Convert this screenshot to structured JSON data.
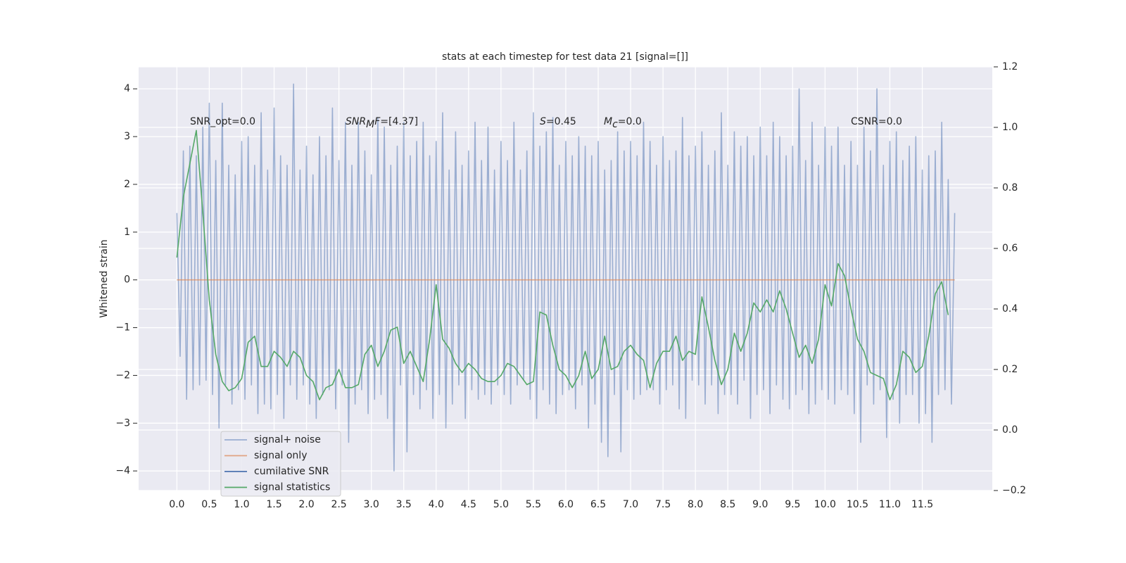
{
  "chart_data": {
    "type": "line",
    "title": "stats at each timestep for test data 21 [signal=[]]",
    "ylabel": "Whitened strain",
    "xlim": [
      -0.59,
      12.58
    ],
    "ylim": [
      -4.41,
      4.46
    ],
    "y2lim": [
      -0.2,
      1.2
    ],
    "xticks": [
      {
        "value": 0,
        "label": "0.0"
      },
      0.5,
      {
        "value": 1,
        "label": "1.0"
      },
      1.5,
      {
        "value": 2,
        "label": "2.0"
      },
      2.5,
      {
        "value": 3,
        "label": "3.0"
      },
      3.5,
      {
        "value": 4,
        "label": "4.0"
      },
      4.5,
      {
        "value": 5,
        "label": "5.0"
      },
      5.5,
      {
        "value": 6,
        "label": "6.0"
      },
      6.5,
      {
        "value": 7,
        "label": "7.0"
      },
      7.5,
      {
        "value": 8,
        "label": "8.0"
      },
      8.5,
      {
        "value": 9,
        "label": "9.0"
      },
      9.5,
      {
        "value": 10,
        "label": "10.0"
      },
      10.5,
      {
        "value": 11,
        "label": "11.0"
      },
      11.5
    ],
    "yticks": [
      {
        "value": -4,
        "label": "−4"
      },
      {
        "value": -3,
        "label": "−3"
      },
      {
        "value": -2,
        "label": "−2"
      },
      {
        "value": -1,
        "label": "−1"
      },
      0,
      1,
      2,
      3,
      4
    ],
    "y2ticks": [
      {
        "value": -0.2,
        "label": "−0.2"
      },
      {
        "value": 0,
        "label": "0.0"
      },
      0.2,
      0.4,
      0.6,
      0.8,
      {
        "value": 1,
        "label": "1.0"
      },
      1.2
    ],
    "grid": true,
    "background": "#eaeaf2",
    "legend": "lower left",
    "annotations": [
      {
        "parts": [
          {
            "text": "SNR_opt=0.0"
          }
        ]
      },
      {
        "parts": [
          {
            "text": "SNR",
            "style": "italic"
          },
          {
            "text": "M",
            "style": "italic-sub"
          },
          {
            "text": "F",
            "style": "italic"
          },
          {
            "text": "=[4.37]"
          }
        ]
      },
      {
        "parts": [
          {
            "text": "S",
            "style": "italic"
          },
          {
            "text": "=0.45"
          }
        ]
      },
      {
        "parts": [
          {
            "text": "M",
            "style": "italic"
          },
          {
            "text": "c",
            "style": "italic-sub"
          },
          {
            "text": "=0.0"
          }
        ]
      },
      {
        "parts": [
          {
            "text": "CSNR=0.0"
          }
        ]
      }
    ],
    "series": [
      {
        "name": "signal+ noise",
        "color": "#4c72b0",
        "opacity": 0.5,
        "x": [
          0,
          0.05,
          0.1,
          0.15,
          0.2,
          0.25,
          0.3,
          0.35,
          0.4,
          0.45,
          0.5,
          0.55,
          0.6,
          0.65,
          0.7,
          0.75,
          0.8,
          0.85,
          0.9,
          0.95,
          1,
          1.05,
          1.1,
          1.15,
          1.2,
          1.25,
          1.3,
          1.35,
          1.4,
          1.45,
          1.5,
          1.55,
          1.6,
          1.65,
          1.7,
          1.75,
          1.8,
          1.85,
          1.9,
          1.95,
          2,
          2.05,
          2.1,
          2.15,
          2.2,
          2.25,
          2.3,
          2.35,
          2.4,
          2.45,
          2.5,
          2.55,
          2.6,
          2.65,
          2.7,
          2.75,
          2.8,
          2.85,
          2.9,
          2.95,
          3,
          3.05,
          3.1,
          3.15,
          3.2,
          3.25,
          3.3,
          3.35,
          3.4,
          3.45,
          3.5,
          3.55,
          3.6,
          3.65,
          3.7,
          3.75,
          3.8,
          3.85,
          3.9,
          3.95,
          4,
          4.05,
          4.1,
          4.15,
          4.2,
          4.25,
          4.3,
          4.35,
          4.4,
          4.45,
          4.5,
          4.55,
          4.6,
          4.65,
          4.7,
          4.75,
          4.8,
          4.85,
          4.9,
          4.95,
          5,
          5.05,
          5.1,
          5.15,
          5.2,
          5.25,
          5.3,
          5.35,
          5.4,
          5.45,
          5.5,
          5.55,
          5.6,
          5.65,
          5.7,
          5.75,
          5.8,
          5.85,
          5.9,
          5.95,
          6,
          6.05,
          6.1,
          6.15,
          6.2,
          6.25,
          6.3,
          6.35,
          6.4,
          6.45,
          6.5,
          6.55,
          6.6,
          6.65,
          6.7,
          6.75,
          6.8,
          6.85,
          6.9,
          6.95,
          7,
          7.05,
          7.1,
          7.15,
          7.2,
          7.25,
          7.3,
          7.35,
          7.4,
          7.45,
          7.5,
          7.55,
          7.6,
          7.65,
          7.7,
          7.75,
          7.8,
          7.85,
          7.9,
          7.95,
          8,
          8.05,
          8.1,
          8.15,
          8.2,
          8.25,
          8.3,
          8.35,
          8.4,
          8.45,
          8.5,
          8.55,
          8.6,
          8.65,
          8.7,
          8.75,
          8.8,
          8.85,
          8.9,
          8.95,
          9,
          9.05,
          9.1,
          9.15,
          9.2,
          9.25,
          9.3,
          9.35,
          9.4,
          9.45,
          9.5,
          9.55,
          9.6,
          9.65,
          9.7,
          9.75,
          9.8,
          9.85,
          9.9,
          9.95,
          10,
          10.05,
          10.1,
          10.15,
          10.2,
          10.25,
          10.3,
          10.35,
          10.4,
          10.45,
          10.5,
          10.55,
          10.6,
          10.65,
          10.7,
          10.75,
          10.8,
          10.85,
          10.9,
          10.95,
          11,
          11.05,
          11.1,
          11.15,
          11.2,
          11.25,
          11.3,
          11.35,
          11.4,
          11.45,
          11.5,
          11.55,
          11.6,
          11.65,
          11.7,
          11.75,
          11.8,
          11.85,
          11.9,
          11.95,
          12
        ],
        "values": [
          1.4,
          -1.6,
          2.7,
          -2.5,
          2.8,
          -2.3,
          2.6,
          -2.2,
          3.2,
          -2.1,
          3.7,
          -2.4,
          2.5,
          -3.1,
          3.7,
          -2.2,
          2.4,
          -2.6,
          2.2,
          -2.3,
          2.9,
          -2.5,
          3.0,
          -2.2,
          2.4,
          -2.8,
          3.5,
          -2.6,
          2.3,
          -2.7,
          3.6,
          -2.4,
          2.6,
          -2.9,
          2.4,
          -2.2,
          4.1,
          -2.5,
          2.3,
          -2.2,
          2.8,
          -2.6,
          2.2,
          -2.9,
          3.0,
          -2.4,
          2.6,
          -2.3,
          3.6,
          -2.7,
          2.5,
          -2.2,
          3.3,
          -3.4,
          2.4,
          -2.6,
          3.3,
          -2.3,
          2.7,
          -2.8,
          2.2,
          -2.5,
          3.4,
          -2.4,
          3.2,
          -2.9,
          2.4,
          -4.0,
          2.8,
          -2.2,
          3.3,
          -3.6,
          2.6,
          -2.4,
          2.9,
          -2.7,
          3.3,
          -2.3,
          2.6,
          -2.9,
          2.9,
          -2.4,
          3.5,
          -3.1,
          2.3,
          -2.6,
          3.1,
          -2.2,
          2.4,
          -2.9,
          2.7,
          -2.3,
          3.3,
          -2.5,
          2.5,
          -2.4,
          3.2,
          -2.6,
          2.3,
          -2.2,
          2.9,
          -2.4,
          2.5,
          -2.6,
          3.3,
          -2.2,
          2.3,
          -2.1,
          2.7,
          -2.5,
          3.5,
          -2.9,
          2.8,
          -2.3,
          3.1,
          -2.6,
          3.4,
          -2.8,
          2.4,
          -2.4,
          2.9,
          -2.3,
          2.6,
          -2.7,
          3.0,
          -2.2,
          2.8,
          -3.1,
          2.6,
          -2.6,
          2.9,
          -3.4,
          2.3,
          -3.7,
          2.5,
          -2.4,
          3.1,
          -3.6,
          2.7,
          -2.3,
          2.9,
          -2.5,
          2.6,
          -2.4,
          3.3,
          -2.3,
          2.9,
          -2.3,
          2.4,
          -2.6,
          3.0,
          -2.3,
          2.5,
          -2.2,
          2.7,
          -2.7,
          3.4,
          -2.9,
          2.6,
          -2.1,
          2.8,
          -2.2,
          3.1,
          -2.6,
          2.4,
          -2.2,
          2.7,
          -2.8,
          3.5,
          -2.4,
          2.4,
          -2.4,
          3.1,
          -2.6,
          2.8,
          -2.1,
          3.0,
          -2.9,
          2.6,
          -2.4,
          3.2,
          -2.3,
          2.6,
          -2.8,
          3.3,
          -2.2,
          3.0,
          -2.5,
          2.6,
          -2.7,
          2.8,
          -2.4,
          4.0,
          -2.3,
          2.5,
          -2.8,
          3.3,
          -2.6,
          2.4,
          -2.3,
          3.2,
          -2.5,
          2.8,
          -2.6,
          3.2,
          -2.3,
          2.4,
          -2.4,
          2.9,
          -2.8,
          2.4,
          -3.4,
          3.2,
          -2.2,
          2.7,
          -2.6,
          4.0,
          -2.3,
          2.4,
          -3.3,
          2.9,
          -2.5,
          3.1,
          -3.0,
          2.5,
          -2.4,
          2.8,
          -2.4,
          3.0,
          -3.0,
          2.3,
          -2.8,
          2.6,
          -3.4,
          2.7,
          -2.4,
          3.3,
          -2.3,
          2.1,
          -2.6,
          1.4
        ]
      },
      {
        "name": "signal only",
        "color": "#dd8452",
        "opacity": 0.7,
        "x": [
          0,
          12
        ],
        "values": [
          0,
          0
        ]
      },
      {
        "name": "cumilative SNR",
        "color": "#4c72b0",
        "opacity": 1,
        "axis": "y2",
        "x": [],
        "values": []
      },
      {
        "name": "signal statistics",
        "color": "#55a868",
        "opacity": 1,
        "axis": "y2",
        "x": [
          0,
          0.1,
          0.2,
          0.3,
          0.4,
          0.5,
          0.6,
          0.7,
          0.8,
          0.9,
          1,
          1.1,
          1.2,
          1.3,
          1.4,
          1.5,
          1.6,
          1.7,
          1.8,
          1.9,
          2,
          2.1,
          2.2,
          2.3,
          2.4,
          2.5,
          2.6,
          2.7,
          2.8,
          2.9,
          3,
          3.1,
          3.2,
          3.3,
          3.4,
          3.5,
          3.6,
          3.7,
          3.8,
          3.9,
          4,
          4.1,
          4.2,
          4.3,
          4.4,
          4.5,
          4.6,
          4.7,
          4.8,
          4.9,
          5,
          5.1,
          5.2,
          5.3,
          5.4,
          5.5,
          5.6,
          5.7,
          5.8,
          5.9,
          6,
          6.1,
          6.2,
          6.3,
          6.4,
          6.5,
          6.6,
          6.7,
          6.8,
          6.9,
          7,
          7.1,
          7.2,
          7.3,
          7.4,
          7.5,
          7.6,
          7.7,
          7.8,
          7.9,
          8,
          8.1,
          8.2,
          8.3,
          8.4,
          8.5,
          8.6,
          8.7,
          8.8,
          8.9,
          9,
          9.1,
          9.2,
          9.3,
          9.4,
          9.5,
          9.6,
          9.7,
          9.8,
          9.9,
          10,
          10.1,
          10.2,
          10.3,
          10.4,
          10.5,
          10.6,
          10.7,
          10.8,
          10.9,
          11,
          11.1,
          11.2,
          11.3,
          11.4,
          11.5,
          11.6,
          11.7,
          11.8,
          11.9
        ],
        "values": [
          0.57,
          0.77,
          0.88,
          0.99,
          0.72,
          0.43,
          0.25,
          0.16,
          0.13,
          0.14,
          0.17,
          0.29,
          0.31,
          0.21,
          0.21,
          0.26,
          0.24,
          0.21,
          0.26,
          0.24,
          0.18,
          0.16,
          0.1,
          0.14,
          0.15,
          0.2,
          0.14,
          0.14,
          0.15,
          0.25,
          0.28,
          0.21,
          0.26,
          0.33,
          0.34,
          0.22,
          0.26,
          0.21,
          0.16,
          0.3,
          0.48,
          0.3,
          0.27,
          0.22,
          0.19,
          0.22,
          0.2,
          0.17,
          0.16,
          0.16,
          0.18,
          0.22,
          0.21,
          0.18,
          0.15,
          0.16,
          0.39,
          0.38,
          0.28,
          0.2,
          0.18,
          0.14,
          0.18,
          0.26,
          0.17,
          0.2,
          0.31,
          0.2,
          0.21,
          0.26,
          0.28,
          0.25,
          0.23,
          0.14,
          0.22,
          0.26,
          0.26,
          0.31,
          0.23,
          0.26,
          0.25,
          0.44,
          0.34,
          0.23,
          0.15,
          0.2,
          0.32,
          0.26,
          0.32,
          0.42,
          0.39,
          0.43,
          0.39,
          0.46,
          0.4,
          0.32,
          0.24,
          0.28,
          0.22,
          0.3,
          0.48,
          0.41,
          0.55,
          0.51,
          0.4,
          0.3,
          0.26,
          0.19,
          0.18,
          0.17,
          0.1,
          0.15,
          0.26,
          0.24,
          0.19,
          0.21,
          0.31,
          0.45,
          0.49,
          0.38
        ]
      }
    ]
  }
}
